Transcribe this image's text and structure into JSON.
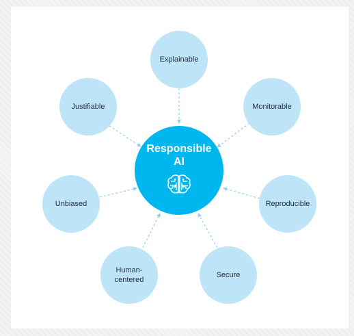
{
  "center": {
    "label": "Responsible\nAI",
    "icon": "brain-circuit-icon"
  },
  "nodes": [
    {
      "id": "explainable",
      "label": "Explainable"
    },
    {
      "id": "monitorable",
      "label": "Monitorable"
    },
    {
      "id": "reproducible",
      "label": "Reproducible"
    },
    {
      "id": "secure",
      "label": "Secure"
    },
    {
      "id": "human-centered",
      "label": "Human-\ncentered"
    },
    {
      "id": "unbiased",
      "label": "Unbiased"
    },
    {
      "id": "justifiable",
      "label": "Justifiable"
    }
  ],
  "colors": {
    "center": "#00b6ef",
    "outer": "#bde4f7",
    "connector": "#8fd0ee",
    "text": "#23313d"
  }
}
